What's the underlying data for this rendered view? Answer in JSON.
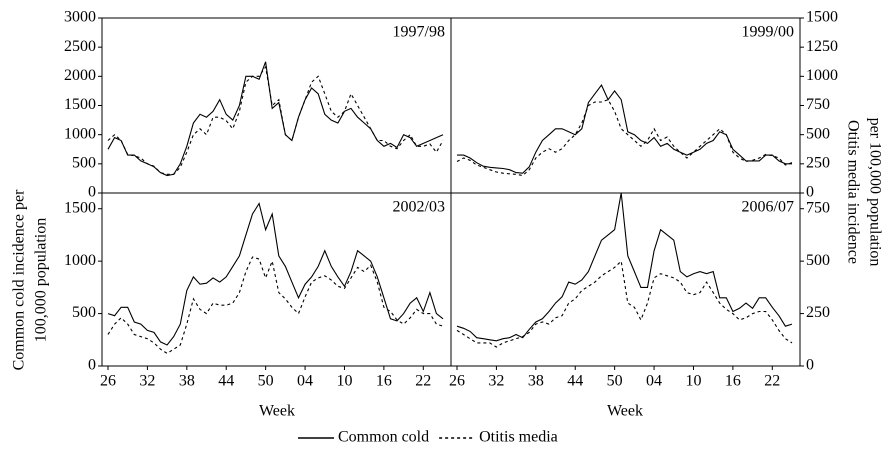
{
  "chart_data": {
    "type": "line",
    "ylabel": [
      "Common cold incidence per",
      "100,000 population"
    ],
    "y2label": [
      "Otitis media incidence",
      "per 100,000 population"
    ],
    "xlabel": "Week",
    "categories": [
      "26",
      null,
      null,
      null,
      null,
      null,
      "32",
      null,
      null,
      null,
      null,
      null,
      "38",
      null,
      null,
      null,
      null,
      null,
      "44",
      null,
      null,
      null,
      null,
      null,
      "50",
      null,
      null,
      null,
      null,
      null,
      "04",
      null,
      null,
      null,
      null,
      null,
      "10",
      null,
      null,
      null,
      null,
      null,
      "16",
      null,
      null,
      null,
      null,
      null,
      "22",
      null,
      null,
      null
    ],
    "legend": [
      {
        "name": "Common cold",
        "color": "#000000",
        "dash": "solid"
      },
      {
        "name": "Otitis media",
        "color": "#000000",
        "dash": "dotted"
      }
    ],
    "panels": [
      {
        "title": "1997/98",
        "ylim": [
          0,
          3000
        ],
        "yticks": [
          0,
          500,
          1000,
          1500,
          2000,
          2500,
          3000
        ],
        "y2lim": [
          0,
          1500
        ],
        "series": [
          {
            "values": [
              750,
              950,
              900,
              650,
              650,
              550,
              500,
              450,
              350,
              300,
              320,
              500,
              800,
              1200,
              1350,
              1300,
              1400,
              1600,
              1350,
              1250,
              1500,
              2000,
              2000,
              1950,
              2250,
              1450,
              1550,
              1000,
              900,
              1300,
              1600,
              1800,
              1700,
              1350,
              1250,
              1200,
              1400,
              1450,
              1300,
              1200,
              1100,
              900,
              800,
              850,
              780,
              1000,
              950,
              800,
              850,
              900,
              950,
              1000
            ]
          },
          {
            "axis": "y2",
            "values": [
              450,
              500,
              450,
              330,
              320,
              300,
              250,
              230,
              175,
              160,
              160,
              220,
              350,
              500,
              550,
              500,
              650,
              650,
              620,
              550,
              700,
              950,
              1000,
              1000,
              1080,
              750,
              800,
              500,
              450,
              650,
              800,
              950,
              1000,
              850,
              700,
              650,
              700,
              850,
              750,
              650,
              550,
              450,
              450,
              400,
              380,
              450,
              500,
              400,
              400,
              420,
              350,
              450
            ]
          }
        ]
      },
      {
        "title": "1999/00",
        "ylim": [
          0,
          3000
        ],
        "y2lim": [
          0,
          1500
        ],
        "y2ticks": [
          0,
          250,
          500,
          750,
          1000,
          1250,
          1500
        ],
        "series": [
          {
            "values": [
              650,
              650,
              600,
              520,
              460,
              440,
              430,
              420,
              400,
              350,
              340,
              450,
              700,
              900,
              1000,
              1100,
              1100,
              1050,
              1000,
              1100,
              1550,
              1700,
              1850,
              1600,
              1750,
              1600,
              1050,
              1000,
              900,
              850,
              950,
              800,
              850,
              750,
              700,
              650,
              700,
              750,
              850,
              900,
              1050,
              1000,
              750,
              650,
              550,
              550,
              550,
              650,
              650,
              550,
              500,
              500
            ]
          },
          {
            "axis": "y2",
            "values": [
              270,
              300,
              280,
              240,
              220,
              200,
              180,
              170,
              165,
              160,
              150,
              200,
              300,
              350,
              380,
              350,
              380,
              450,
              500,
              600,
              750,
              780,
              780,
              800,
              700,
              550,
              500,
              450,
              400,
              450,
              550,
              450,
              480,
              400,
              350,
              300,
              350,
              400,
              450,
              500,
              550,
              500,
              350,
              300,
              270,
              280,
              300,
              330,
              320,
              300,
              240,
              260
            ]
          }
        ]
      },
      {
        "title": "2002/03",
        "ylim": [
          0,
          1650
        ],
        "yticks": [
          0,
          500,
          1000,
          1500
        ],
        "y2lim": [
          0,
          825
        ],
        "series": [
          {
            "values": [
              500,
              480,
              560,
              560,
              420,
              400,
              340,
              320,
              230,
              200,
              280,
              400,
              720,
              850,
              780,
              790,
              840,
              800,
              850,
              950,
              1050,
              1250,
              1450,
              1550,
              1300,
              1450,
              1050,
              950,
              800,
              650,
              780,
              850,
              950,
              1100,
              950,
              850,
              760,
              900,
              1100,
              1050,
              1000,
              850,
              650,
              450,
              430,
              500,
              600,
              650,
              520,
              700,
              500,
              450
            ]
          },
          {
            "axis": "y2",
            "values": [
              150,
              200,
              230,
              200,
              150,
              140,
              130,
              110,
              80,
              60,
              80,
              100,
              200,
              320,
              270,
              250,
              300,
              290,
              290,
              300,
              350,
              450,
              520,
              510,
              420,
              500,
              350,
              320,
              280,
              250,
              330,
              400,
              420,
              430,
              410,
              380,
              370,
              420,
              470,
              450,
              480,
              400,
              280,
              260,
              220,
              200,
              230,
              270,
              250,
              250,
              200,
              190
            ]
          }
        ]
      },
      {
        "title": "2006/07",
        "ylim": [
          0,
          1650
        ],
        "y2lim": [
          0,
          825
        ],
        "y2ticks": [
          0,
          250,
          500,
          750
        ],
        "series": [
          {
            "values": [
              380,
              360,
              330,
              270,
              260,
              250,
              240,
              260,
              270,
              300,
              270,
              350,
              420,
              450,
              520,
              600,
              660,
              800,
              780,
              820,
              900,
              1050,
              1200,
              1250,
              1300,
              1650,
              1050,
              900,
              750,
              750,
              1100,
              1300,
              1250,
              1200,
              900,
              850,
              880,
              900,
              880,
              900,
              650,
              650,
              520,
              550,
              600,
              550,
              650,
              650,
              560,
              480,
              380,
              400
            ]
          },
          {
            "axis": "y2",
            "values": [
              170,
              150,
              130,
              110,
              110,
              110,
              90,
              110,
              120,
              130,
              140,
              160,
              200,
              210,
              200,
              230,
              240,
              300,
              320,
              360,
              380,
              400,
              430,
              450,
              470,
              500,
              300,
              280,
              220,
              300,
              420,
              440,
              430,
              420,
              400,
              350,
              340,
              350,
              400,
              350,
              300,
              270,
              250,
              220,
              230,
              250,
              260,
              260,
              220,
              170,
              130,
              110
            ]
          }
        ]
      }
    ]
  }
}
